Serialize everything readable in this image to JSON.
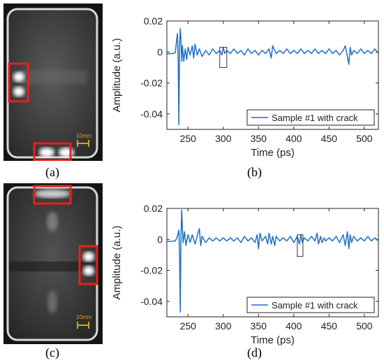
{
  "figure": {
    "captions": [
      "(a)",
      "(b)",
      "(c)",
      "(d)"
    ]
  },
  "images": [
    {
      "scale_label": "10mm",
      "highlight_color": "#e8201c",
      "scale_color": "#e0a020"
    },
    {
      "scale_label": "10mm",
      "highlight_color": "#e8201c",
      "scale_color": "#e0a020"
    }
  ],
  "chart_data": [
    {
      "type": "line",
      "xlabel": "Time (ps)",
      "ylabel": "Amplitude (a.u.)",
      "xlim": [
        220,
        520
      ],
      "ylim": [
        -0.05,
        0.02
      ],
      "xticks": [
        250,
        300,
        350,
        400,
        450,
        500
      ],
      "yticks": [
        0.02,
        0,
        -0.02,
        -0.04
      ],
      "ytick_labels": [
        "0.02",
        "0",
        "-0.02",
        "-0.04"
      ],
      "grid": false,
      "legend_position": "bottom-right",
      "line_color": "#1f6fc5",
      "series": [
        {
          "name": "Sample #1 with crack",
          "x": [
            220,
            228,
            232,
            234,
            235,
            236,
            237,
            238,
            239,
            240,
            241,
            242,
            244,
            246,
            248,
            250,
            253,
            256,
            258,
            260,
            263,
            266,
            270,
            275,
            280,
            285,
            290,
            295,
            298,
            300,
            302,
            305,
            310,
            315,
            320,
            325,
            330,
            335,
            340,
            345,
            350,
            355,
            360,
            365,
            368,
            370,
            375,
            380,
            385,
            390,
            395,
            400,
            405,
            410,
            415,
            420,
            425,
            430,
            435,
            440,
            445,
            450,
            455,
            460,
            465,
            470,
            473,
            476,
            478,
            480,
            482,
            485,
            490,
            495,
            500,
            505,
            510,
            515,
            520
          ],
          "y": [
            -0.0012,
            -0.001,
            -0.0005,
            0.008,
            0.012,
            -0.005,
            -0.047,
            0.005,
            0.015,
            0.008,
            -0.006,
            0.004,
            -0.006,
            0.002,
            -0.005,
            0.003,
            -0.002,
            0.004,
            -0.004,
            0.005,
            -0.002,
            0.002,
            -0.003,
            0.001,
            -0.002,
            0.002,
            -0.001,
            0.001,
            -0.002,
            0.003,
            -0.001,
            0.001,
            -0.001,
            0.002,
            -0.001,
            0.001,
            -0.002,
            0.002,
            -0.001,
            0.001,
            -0.002,
            0.001,
            -0.001,
            0.002,
            -0.004,
            0.004,
            -0.001,
            0.001,
            -0.001,
            0.002,
            -0.001,
            0.001,
            -0.001,
            0.002,
            -0.001,
            0.001,
            -0.001,
            0.002,
            -0.001,
            0.001,
            -0.001,
            0.002,
            -0.001,
            0.001,
            -0.002,
            0.001,
            0.004,
            -0.003,
            -0.008,
            0.003,
            -0.002,
            0.001,
            -0.001,
            0.002,
            -0.001,
            0.001,
            -0.001,
            0.002,
            -0.001
          ]
        }
      ],
      "box_marker": {
        "x_range": [
          295,
          305
        ],
        "y_range": [
          -0.01,
          0.003
        ]
      }
    },
    {
      "type": "line",
      "xlabel": "Time (ps)",
      "ylabel": "Amplitude (a.u.)",
      "xlim": [
        220,
        520
      ],
      "ylim": [
        -0.05,
        0.02
      ],
      "xticks": [
        250,
        300,
        350,
        400,
        450,
        500
      ],
      "yticks": [
        0.02,
        0,
        -0.02,
        -0.04
      ],
      "ytick_labels": [
        "0.02",
        "0",
        "-0.02",
        "-0.04"
      ],
      "grid": false,
      "legend_position": "bottom-right",
      "line_color": "#1f6fc5",
      "series": [
        {
          "name": "Sample #1 with crack",
          "x": [
            220,
            228,
            232,
            235,
            237,
            238,
            239,
            240,
            241,
            242,
            243,
            245,
            247,
            250,
            253,
            256,
            260,
            263,
            266,
            268,
            270,
            275,
            280,
            285,
            290,
            295,
            300,
            305,
            310,
            315,
            320,
            325,
            330,
            335,
            340,
            345,
            348,
            350,
            352,
            355,
            360,
            363,
            365,
            368,
            370,
            373,
            375,
            380,
            385,
            390,
            395,
            400,
            405,
            408,
            410,
            412,
            415,
            420,
            425,
            430,
            433,
            435,
            438,
            440,
            443,
            445,
            450,
            455,
            460,
            465,
            470,
            473,
            476,
            478,
            480,
            482,
            485,
            490,
            495,
            500,
            505,
            510,
            515,
            520
          ],
          "y": [
            -0.0013,
            -0.0012,
            -0.001,
            0.002,
            0.006,
            -0.01,
            -0.047,
            0.002,
            0.019,
            0.008,
            -0.002,
            0.005,
            -0.004,
            0.003,
            -0.002,
            0.003,
            -0.003,
            0.002,
            0.007,
            -0.004,
            0.002,
            -0.002,
            0.001,
            -0.001,
            0.001,
            -0.001,
            0.001,
            -0.001,
            0.001,
            -0.001,
            0.001,
            -0.002,
            0.002,
            -0.001,
            0.001,
            -0.002,
            0.003,
            -0.006,
            0.004,
            -0.001,
            0.002,
            -0.003,
            0.004,
            -0.003,
            0.002,
            -0.004,
            0.002,
            -0.001,
            0.001,
            -0.001,
            0.002,
            -0.002,
            0.002,
            -0.003,
            0.003,
            -0.002,
            0.001,
            -0.001,
            0.002,
            -0.001,
            0.004,
            -0.003,
            0.002,
            -0.002,
            0.001,
            -0.001,
            0.001,
            -0.001,
            0.002,
            -0.002,
            0.003,
            -0.004,
            0.005,
            -0.006,
            0.003,
            -0.002,
            0.002,
            -0.001,
            0.001,
            -0.001,
            0.002,
            -0.001,
            0.001,
            -0.001
          ],
          "dummy": null
        }
      ],
      "box_marker": {
        "x_range": [
          405,
          413
        ],
        "y_range": [
          -0.011,
          0.003
        ]
      }
    }
  ]
}
